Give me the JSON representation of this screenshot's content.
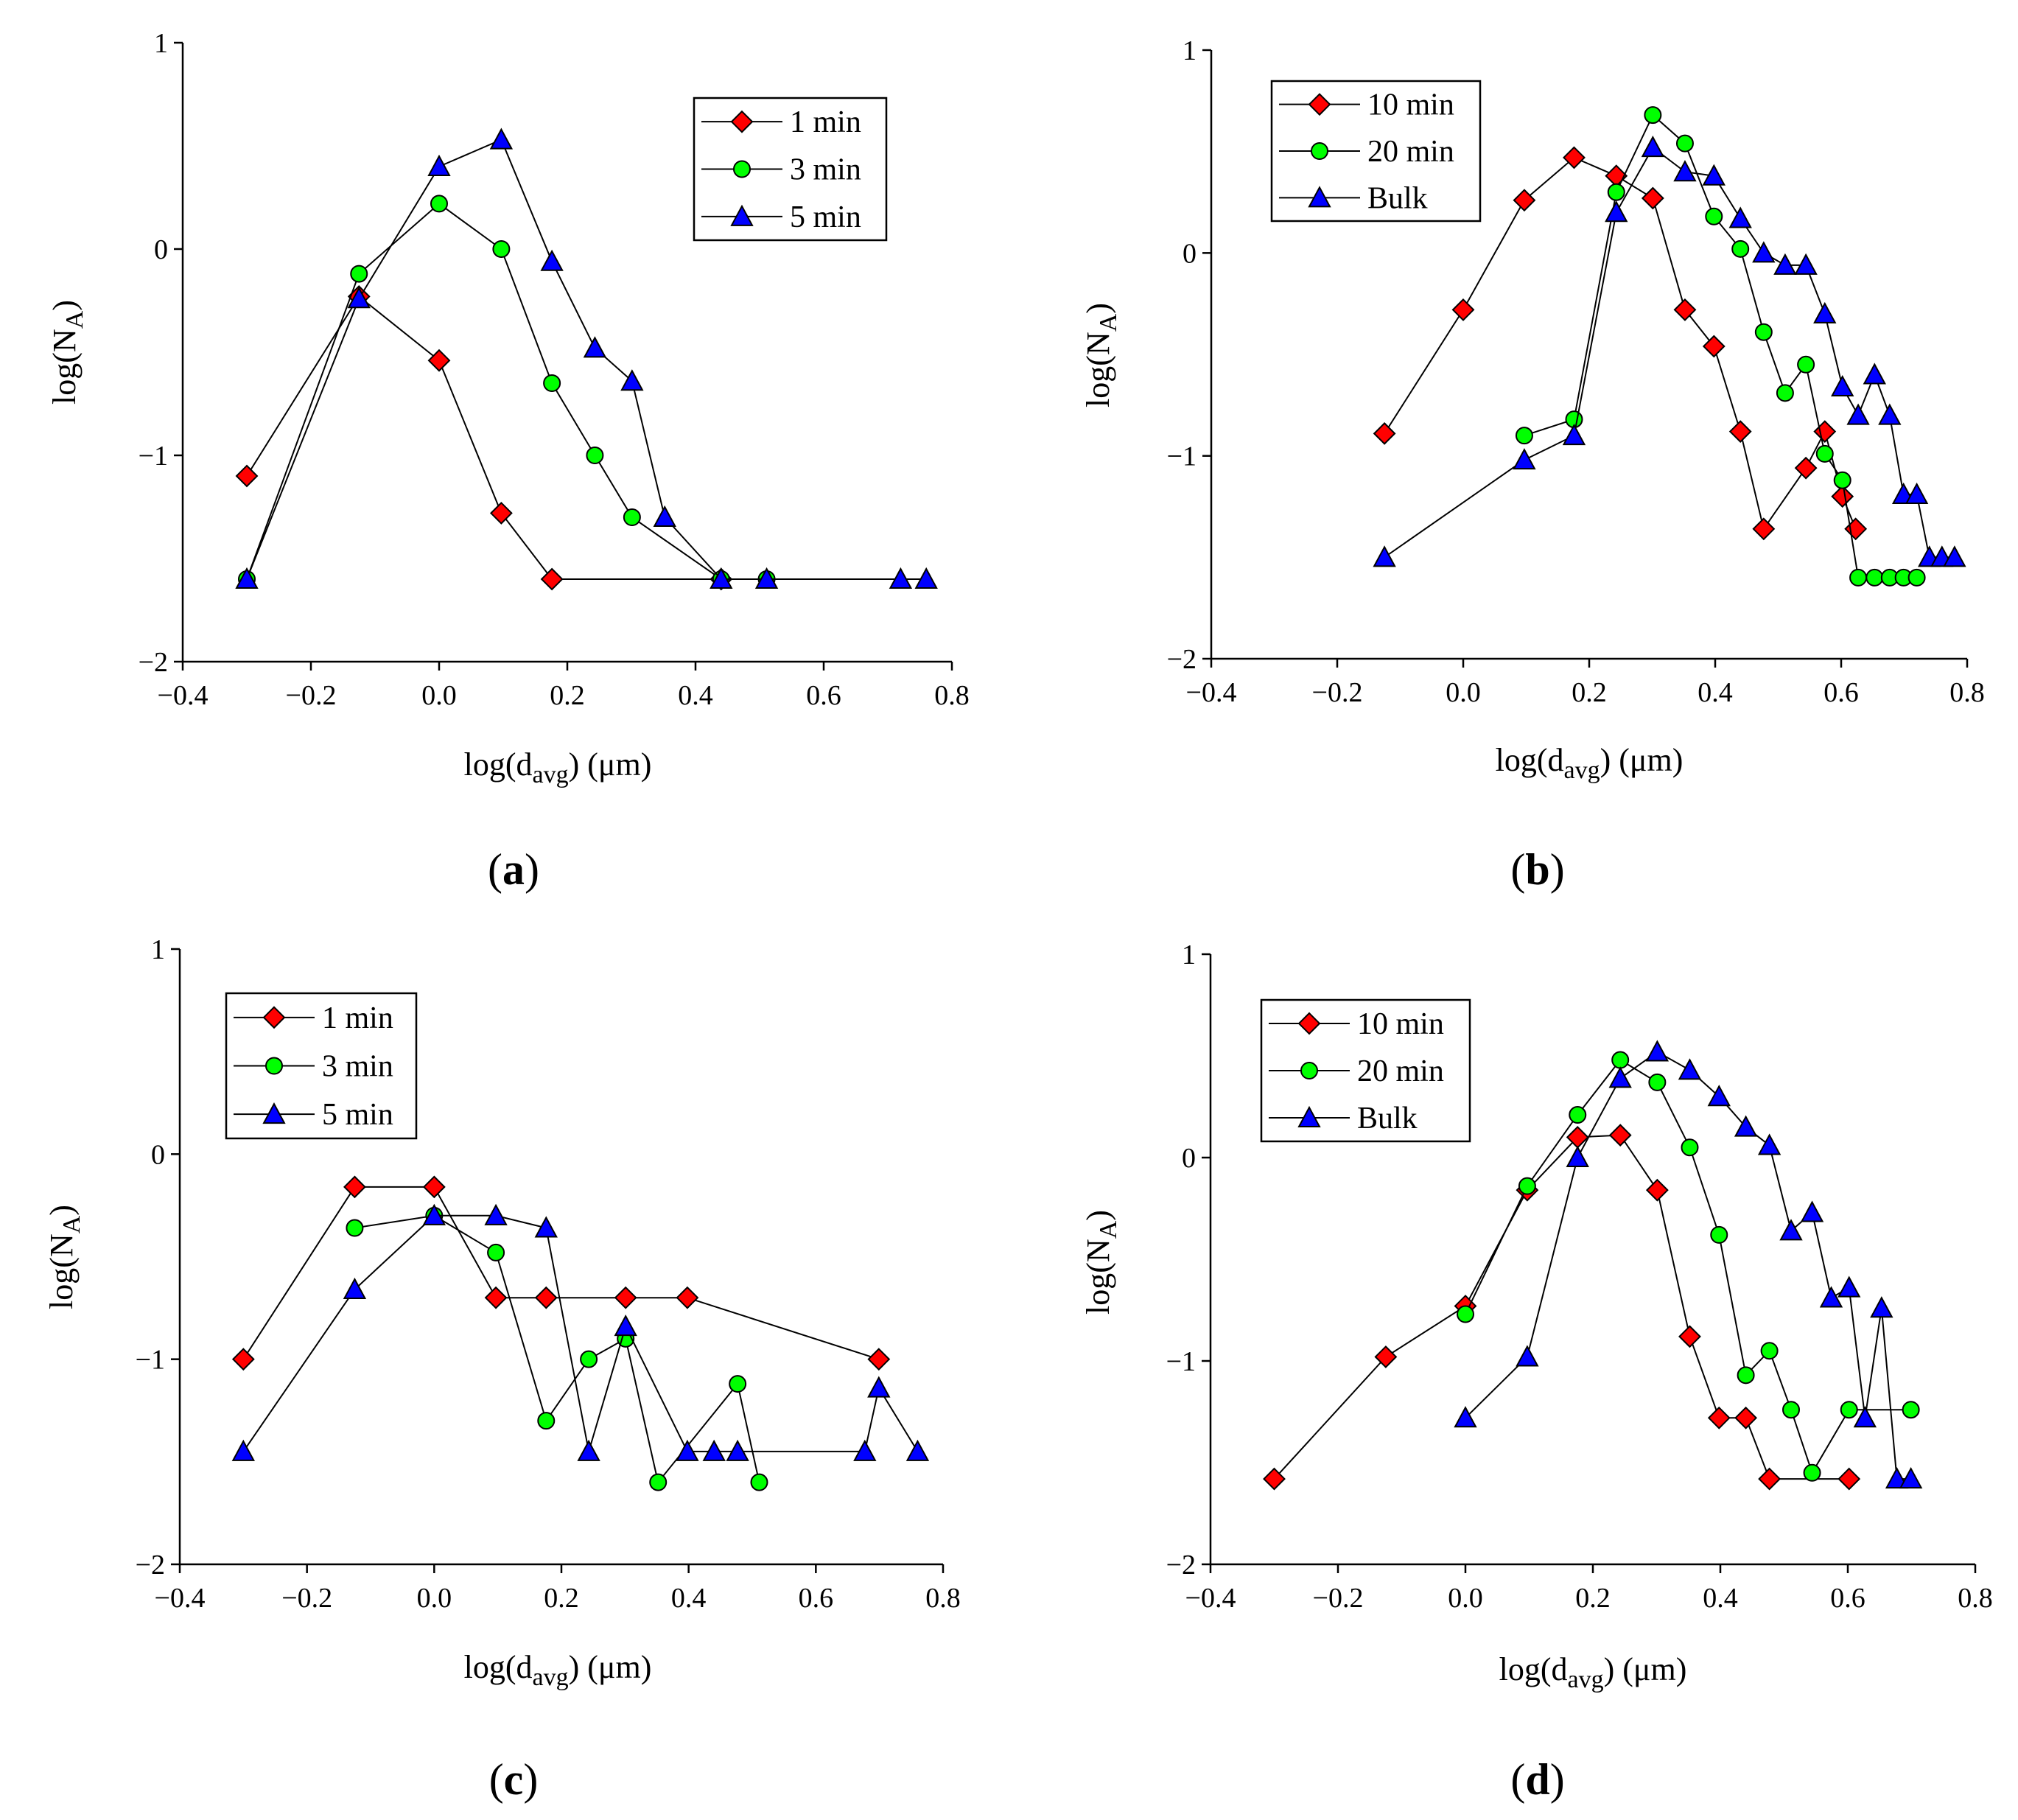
{
  "chart_data": [
    {
      "type": "line",
      "panel": "a",
      "xlabel": "log(d",
      "xlabel_sub": "avg",
      "xlabel_unit": ") (μm)",
      "ylabel": "log(N",
      "ylabel_sub": "A",
      "ylabel_end": ")",
      "xlim": [
        -0.4,
        0.8
      ],
      "ylim": [
        -2,
        1
      ],
      "xticks": [
        "−0.4",
        "−0.2",
        "0.0",
        "0.2",
        "0.4",
        "0.6",
        "0.8"
      ],
      "yticks": [
        "−2",
        "−1",
        "0",
        "1"
      ],
      "legend_position": "top-right",
      "series": [
        {
          "name": "1 min",
          "marker": "diamond",
          "color": "#ff0000",
          "x": [
            -0.3,
            -0.125,
            0.0,
            0.097,
            0.176,
            0.44
          ],
          "y": [
            -1.1,
            -0.23,
            -0.54,
            -1.28,
            -1.6,
            -1.6
          ]
        },
        {
          "name": "3 min",
          "marker": "circle",
          "color": "#00ff00",
          "x": [
            -0.3,
            -0.125,
            0.0,
            0.097,
            0.176,
            0.243,
            0.301,
            0.44,
            0.511
          ],
          "y": [
            -1.6,
            -0.12,
            0.22,
            0.0,
            -0.65,
            -1.0,
            -1.3,
            -1.6,
            -1.6
          ]
        },
        {
          "name": "5 min",
          "marker": "triangle",
          "color": "#0000ff",
          "x": [
            -0.3,
            -0.125,
            0.0,
            0.097,
            0.176,
            0.243,
            0.301,
            0.352,
            0.44,
            0.511,
            0.72,
            0.76
          ],
          "y": [
            -1.6,
            -0.24,
            0.4,
            0.53,
            -0.06,
            -0.48,
            -0.64,
            -1.3,
            -1.6,
            -1.6,
            -1.6,
            -1.6
          ]
        }
      ]
    },
    {
      "type": "line",
      "panel": "b",
      "xlabel": "log(d",
      "xlabel_sub": "avg",
      "xlabel_unit": ") (μm)",
      "ylabel": "log(N",
      "ylabel_sub": "A",
      "ylabel_end": ")",
      "xlim": [
        -0.4,
        0.8
      ],
      "ylim": [
        -2,
        1
      ],
      "xticks": [
        "−0.4",
        "−0.2",
        "0.0",
        "0.2",
        "0.4",
        "0.6",
        "0.8"
      ],
      "yticks": [
        "−2",
        "−1",
        "0",
        "1"
      ],
      "legend_position": "top-left",
      "series": [
        {
          "name": "10 min",
          "marker": "diamond",
          "color": "#ff0000",
          "x": [
            -0.125,
            0.0,
            0.097,
            0.176,
            0.243,
            0.301,
            0.352,
            0.398,
            0.44,
            0.477,
            0.544,
            0.574,
            0.602,
            0.623
          ],
          "y": [
            -0.89,
            -0.28,
            0.26,
            0.47,
            0.38,
            0.27,
            -0.28,
            -0.46,
            -0.88,
            -1.36,
            -1.06,
            -0.88,
            -1.2,
            -1.36
          ]
        },
        {
          "name": "20 min",
          "marker": "circle",
          "color": "#00ff00",
          "x": [
            0.097,
            0.176,
            0.243,
            0.301,
            0.352,
            0.398,
            0.44,
            0.477,
            0.511,
            0.544,
            0.574,
            0.602,
            0.627,
            0.653,
            0.677,
            0.699,
            0.72
          ],
          "y": [
            -0.9,
            -0.82,
            0.3,
            0.68,
            0.54,
            0.18,
            0.02,
            -0.39,
            -0.69,
            -0.55,
            -0.99,
            -1.12,
            -1.6,
            -1.6,
            -1.6,
            -1.6,
            -1.6
          ]
        },
        {
          "name": "Bulk",
          "marker": "triangle",
          "color": "#0000ff",
          "x": [
            -0.125,
            0.097,
            0.176,
            0.243,
            0.301,
            0.352,
            0.398,
            0.44,
            0.477,
            0.511,
            0.544,
            0.574,
            0.602,
            0.627,
            0.653,
            0.677,
            0.699,
            0.72,
            0.74,
            0.76,
            0.78
          ],
          "y": [
            -1.5,
            -1.02,
            -0.9,
            0.2,
            0.52,
            0.4,
            0.38,
            0.17,
            0.0,
            -0.06,
            -0.06,
            -0.3,
            -0.66,
            -0.8,
            -0.6,
            -0.8,
            -1.19,
            -1.19,
            -1.5,
            -1.5,
            -1.5
          ]
        }
      ]
    },
    {
      "type": "line",
      "panel": "c",
      "xlabel": "log(d",
      "xlabel_sub": "avg",
      "xlabel_unit": ") (μm)",
      "ylabel": "log(N",
      "ylabel_sub": "A",
      "ylabel_end": ")",
      "xlim": [
        -0.4,
        0.8
      ],
      "ylim": [
        -2,
        1
      ],
      "xticks": [
        "−0.4",
        "−0.2",
        "0.0",
        "0.2",
        "0.4",
        "0.6",
        "0.8"
      ],
      "yticks": [
        "−2",
        "−1",
        "0",
        "1"
      ],
      "legend_position": "top-left",
      "series": [
        {
          "name": "1 min",
          "marker": "diamond",
          "color": "#ff0000",
          "x": [
            -0.3,
            -0.125,
            0.0,
            0.097,
            0.176,
            0.301,
            0.398,
            0.699
          ],
          "y": [
            -1.0,
            -0.16,
            -0.16,
            -0.7,
            -0.7,
            -0.7,
            -0.7,
            -1.0
          ]
        },
        {
          "name": "3 min",
          "marker": "circle",
          "color": "#00ff00",
          "x": [
            -0.125,
            0.0,
            0.097,
            0.176,
            0.243,
            0.301,
            0.352,
            0.477,
            0.511
          ],
          "y": [
            -0.36,
            -0.3,
            -0.48,
            -1.3,
            -1.0,
            -0.9,
            -1.6,
            -1.12,
            -1.6
          ]
        },
        {
          "name": "5 min",
          "marker": "triangle",
          "color": "#0000ff",
          "x": [
            -0.3,
            -0.125,
            0.0,
            0.097,
            0.176,
            0.243,
            0.301,
            0.398,
            0.44,
            0.477,
            0.677,
            0.699,
            0.76
          ],
          "y": [
            -1.45,
            -0.66,
            -0.3,
            -0.3,
            -0.36,
            -1.45,
            -0.84,
            -1.45,
            -1.45,
            -1.45,
            -1.45,
            -1.14,
            -1.45
          ]
        }
      ]
    },
    {
      "type": "line",
      "panel": "d",
      "xlabel": "log(d",
      "xlabel_sub": "avg",
      "xlabel_unit": ") (μm)",
      "ylabel": "log(N",
      "ylabel_sub": "A",
      "ylabel_end": ")",
      "xlim": [
        -0.4,
        0.8
      ],
      "ylim": [
        -2,
        1
      ],
      "xticks": [
        "−0.4",
        "−0.2",
        "0.0",
        "0.2",
        "0.4",
        "0.6",
        "0.8"
      ],
      "yticks": [
        "−2",
        "−1",
        "0",
        "1"
      ],
      "legend_position": "top-left",
      "series": [
        {
          "name": "10 min",
          "marker": "diamond",
          "color": "#ff0000",
          "x": [
            -0.3,
            -0.125,
            0.0,
            0.097,
            0.176,
            0.243,
            0.301,
            0.352,
            0.398,
            0.44,
            0.477,
            0.602
          ],
          "y": [
            -1.58,
            -0.98,
            -0.73,
            -0.16,
            0.1,
            0.11,
            -0.16,
            -0.88,
            -1.28,
            -1.28,
            -1.58,
            -1.58
          ]
        },
        {
          "name": "20 min",
          "marker": "circle",
          "color": "#00ff00",
          "x": [
            0.0,
            0.097,
            0.176,
            0.243,
            0.301,
            0.352,
            0.398,
            0.44,
            0.477,
            0.511,
            0.544,
            0.602,
            0.699
          ],
          "y": [
            -0.77,
            -0.14,
            0.21,
            0.48,
            0.37,
            0.05,
            -0.38,
            -1.07,
            -0.95,
            -1.24,
            -1.55,
            -1.24,
            -1.24
          ]
        },
        {
          "name": "Bulk",
          "marker": "triangle",
          "color": "#0000ff",
          "x": [
            0.0,
            0.097,
            0.176,
            0.243,
            0.301,
            0.352,
            0.398,
            0.44,
            0.477,
            0.511,
            0.544,
            0.574,
            0.602,
            0.627,
            0.653,
            0.677,
            0.699
          ],
          "y": [
            -1.28,
            -0.98,
            0.0,
            0.39,
            0.52,
            0.43,
            0.3,
            0.15,
            0.06,
            -0.36,
            -0.27,
            -0.69,
            -0.64,
            -1.28,
            -0.74,
            -1.58,
            -1.58
          ]
        }
      ]
    }
  ]
}
